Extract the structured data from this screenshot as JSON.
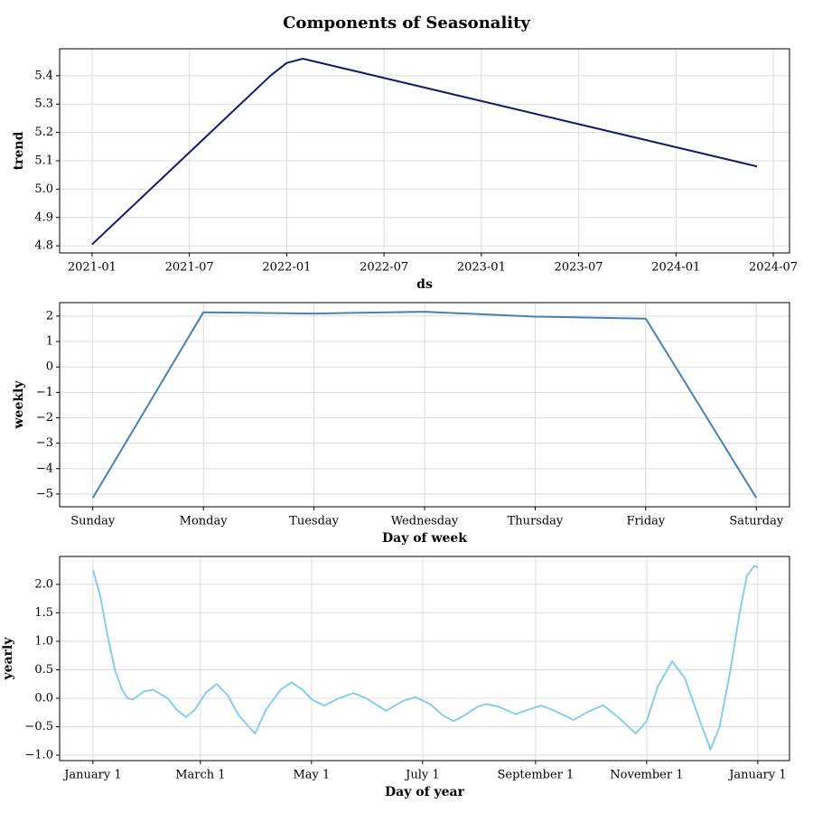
{
  "title": "Components of Seasonality",
  "chart_data": [
    {
      "type": "line",
      "ylabel": "trend",
      "xlabel": "ds",
      "color": "#191970",
      "grid": true,
      "x": [
        "2021-01",
        "2021-12",
        "2022-01",
        "2022-02",
        "2024-06"
      ],
      "values": [
        4.805,
        5.4,
        5.445,
        5.46,
        5.08
      ],
      "xlim": [
        "2020-11",
        "2024-08"
      ],
      "xticks": [
        "2021-01",
        "2021-07",
        "2022-01",
        "2022-07",
        "2023-01",
        "2023-07",
        "2024-01",
        "2024-07"
      ],
      "ylim": [
        4.775,
        5.495
      ],
      "yticks": [
        4.8,
        4.9,
        {
          "value": 5,
          "label": "5.0"
        },
        5.1,
        5.2,
        5.3,
        5.4
      ]
    },
    {
      "type": "line",
      "ylabel": "weekly",
      "xlabel": "Day of week",
      "color": "#4682b4",
      "grid": true,
      "categories": [
        "Sunday",
        "Monday",
        "Tuesday",
        "Wednesday",
        "Thursday",
        "Friday",
        "Saturday"
      ],
      "values": [
        -5.15,
        2.15,
        2.1,
        2.17,
        1.98,
        1.9,
        -5.15
      ],
      "ylim": [
        -5.5,
        2.53
      ],
      "yticks": [
        {
          "value": -5,
          "label": "−5"
        },
        {
          "value": -4,
          "label": "−4"
        },
        {
          "value": -3,
          "label": "−3"
        },
        {
          "value": -2,
          "label": "−2"
        },
        {
          "value": -1,
          "label": "−1"
        },
        0,
        1,
        2
      ]
    },
    {
      "type": "line",
      "ylabel": "yearly",
      "xlabel": "Day of year",
      "color": "#87ceeb",
      "grid": true,
      "x": [
        0,
        4,
        8,
        12,
        16,
        19,
        22,
        28,
        33,
        41,
        46,
        51,
        56,
        62,
        68,
        74,
        80,
        89,
        95,
        103,
        109,
        115,
        120,
        127,
        135,
        143,
        150,
        161,
        170,
        177,
        185,
        192,
        198,
        204,
        211,
        216,
        223,
        232,
        239,
        246,
        252,
        264,
        271,
        280,
        289,
        298,
        304,
        310,
        318,
        325,
        331,
        339,
        344,
        350,
        355,
        359,
        363,
        365
      ],
      "values": [
        2.25,
        1.8,
        1.1,
        0.5,
        0.15,
        0.0,
        -0.02,
        0.12,
        0.15,
        0.0,
        -0.2,
        -0.33,
        -0.2,
        0.1,
        0.25,
        0.05,
        -0.3,
        -0.62,
        -0.2,
        0.15,
        0.28,
        0.15,
        -0.02,
        -0.13,
        0.0,
        0.09,
        0.0,
        -0.22,
        -0.05,
        0.02,
        -0.1,
        -0.3,
        -0.4,
        -0.3,
        -0.15,
        -0.1,
        -0.15,
        -0.28,
        -0.2,
        -0.13,
        -0.2,
        -0.38,
        -0.25,
        -0.12,
        -0.35,
        -0.62,
        -0.4,
        0.2,
        0.65,
        0.35,
        -0.2,
        -0.9,
        -0.5,
        0.5,
        1.5,
        2.15,
        2.32,
        2.3
      ],
      "xlim": [
        -18.3,
        382.4
      ],
      "xticks": [
        {
          "value": 0,
          "label": "January 1"
        },
        {
          "value": 59,
          "label": "March 1"
        },
        {
          "value": 120,
          "label": "May 1"
        },
        {
          "value": 181,
          "label": "July 1"
        },
        {
          "value": 243,
          "label": "September 1"
        },
        {
          "value": 304,
          "label": "November 1"
        },
        {
          "value": 365,
          "label": "January 1"
        }
      ],
      "ylim": [
        -1.095,
        2.49
      ],
      "yticks": [
        {
          "value": -1,
          "label": "−1.0"
        },
        {
          "value": -0.5,
          "label": "−0.5"
        },
        {
          "value": 0,
          "label": "0.0"
        },
        0.5,
        {
          "value": 1,
          "label": "1.0"
        },
        1.5,
        {
          "value": 2,
          "label": "2.0"
        }
      ]
    }
  ]
}
